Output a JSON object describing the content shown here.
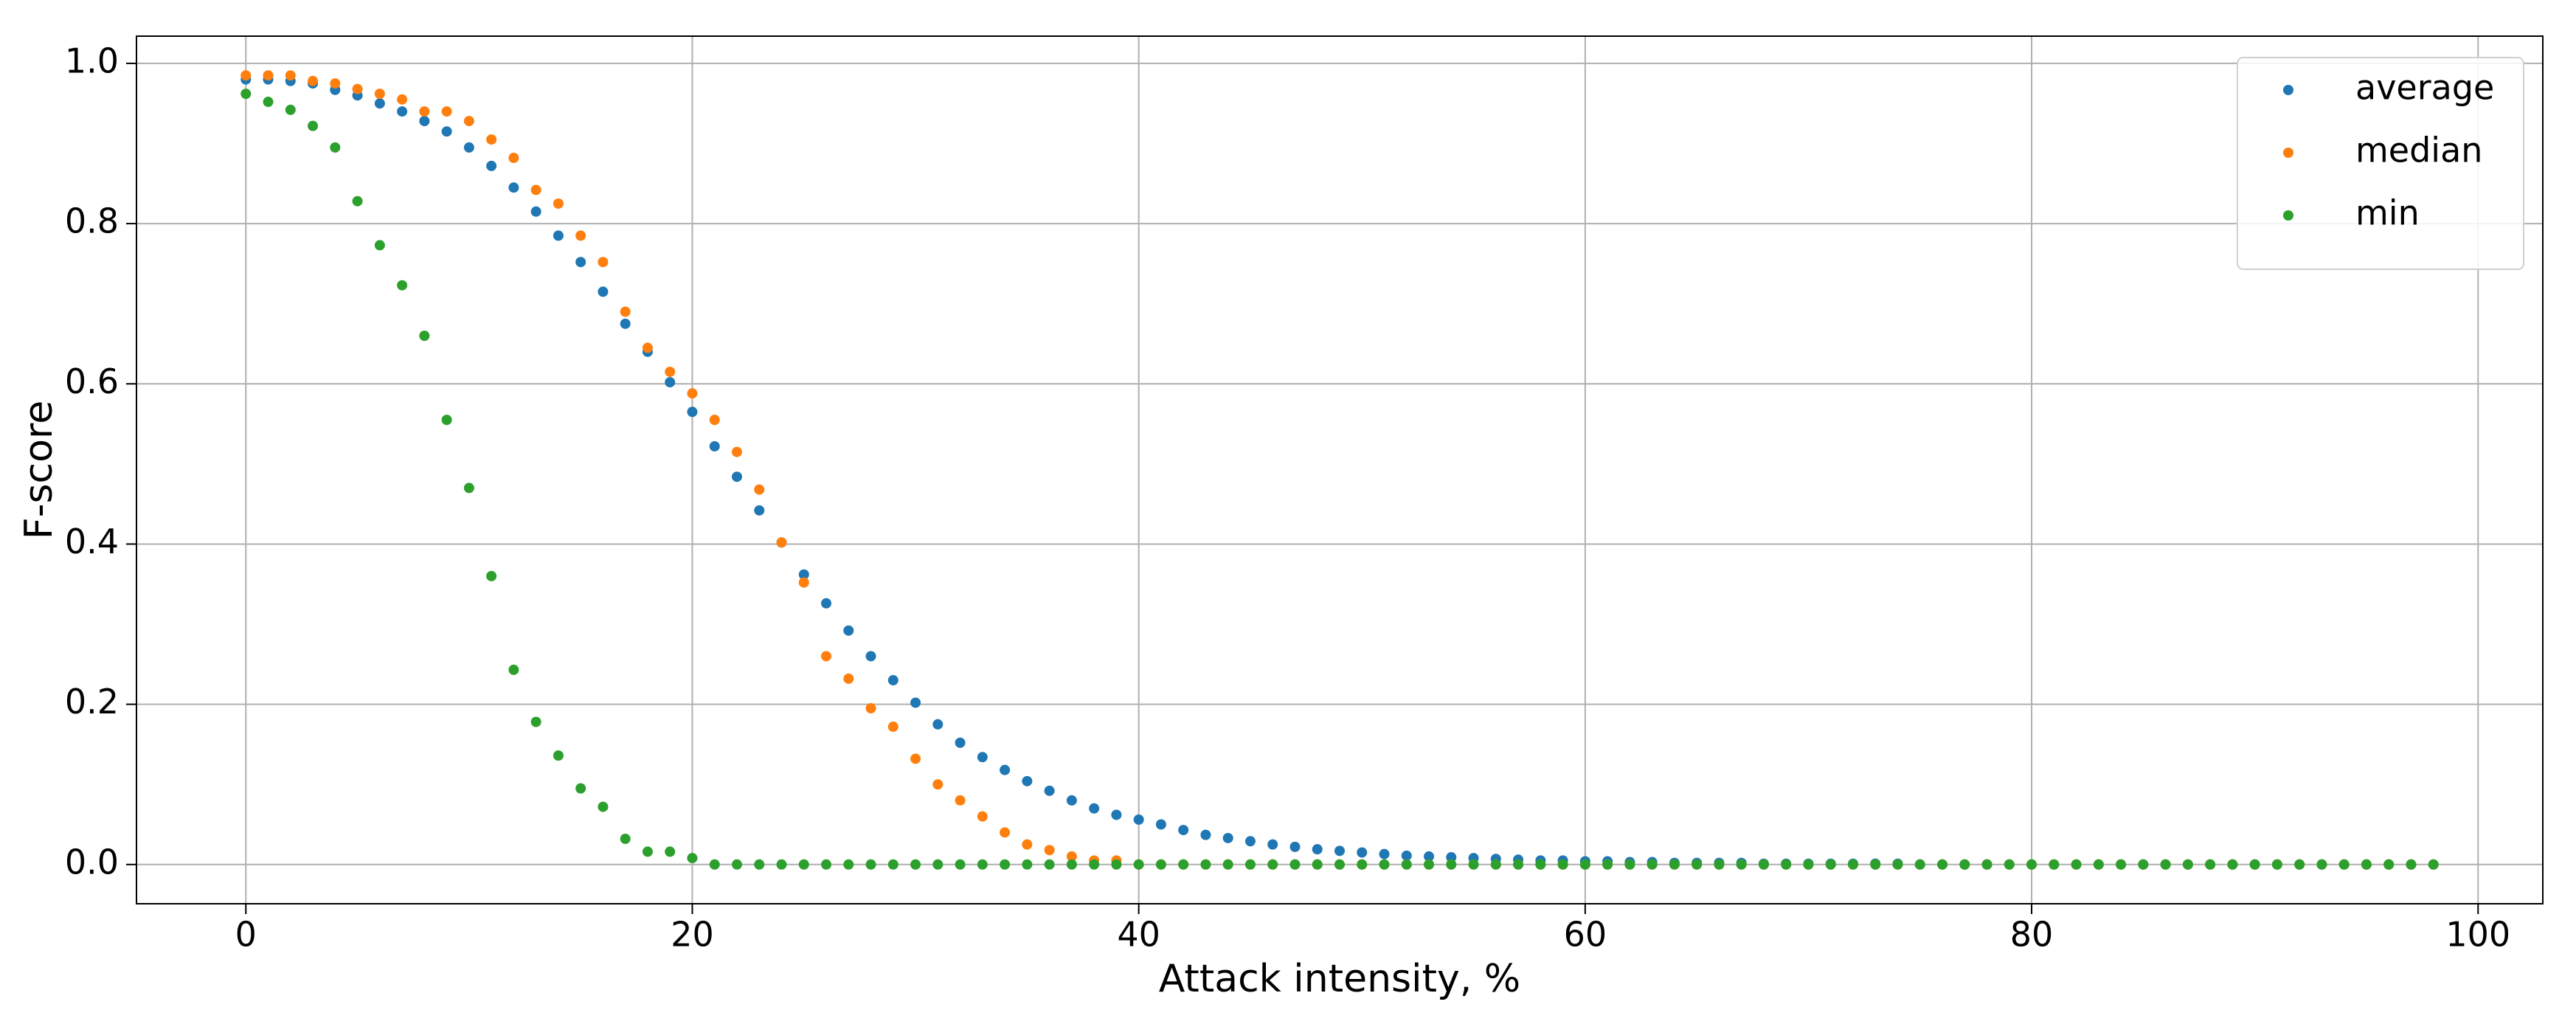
{
  "chart_data": {
    "type": "scatter",
    "xlabel": "Attack intensity, %",
    "ylabel": "F-score",
    "x": [
      0,
      1,
      2,
      3,
      4,
      5,
      6,
      7,
      8,
      9,
      10,
      11,
      12,
      13,
      14,
      15,
      16,
      17,
      18,
      19,
      20,
      21,
      22,
      23,
      24,
      25,
      26,
      27,
      28,
      29,
      30,
      31,
      32,
      33,
      34,
      35,
      36,
      37,
      38,
      39,
      40,
      41,
      42,
      43,
      44,
      45,
      46,
      47,
      48,
      49,
      50,
      51,
      52,
      53,
      54,
      55,
      56,
      57,
      58,
      59,
      60,
      61,
      62,
      63,
      64,
      65,
      66,
      67,
      68,
      69,
      70,
      71,
      72,
      73,
      74,
      75,
      76,
      77,
      78,
      79,
      80,
      81,
      82,
      83,
      84,
      85,
      86,
      87,
      88,
      89,
      90,
      91,
      92,
      93,
      94,
      95,
      96,
      97,
      98
    ],
    "series": [
      {
        "name": "average",
        "color": "#1f77b4",
        "values": [
          0.98,
          0.98,
          0.978,
          0.975,
          0.967,
          0.96,
          0.95,
          0.94,
          0.928,
          0.915,
          0.895,
          0.872,
          0.845,
          0.815,
          0.785,
          0.752,
          0.715,
          0.675,
          0.64,
          0.602,
          0.565,
          0.522,
          0.484,
          0.442,
          0.402,
          0.362,
          0.326,
          0.292,
          0.26,
          0.23,
          0.202,
          0.175,
          0.152,
          0.134,
          0.118,
          0.104,
          0.092,
          0.08,
          0.07,
          0.062,
          0.056,
          0.05,
          0.043,
          0.037,
          0.033,
          0.029,
          0.025,
          0.022,
          0.019,
          0.017,
          0.015,
          0.013,
          0.011,
          0.01,
          0.009,
          0.008,
          0.007,
          0.006,
          0.005,
          0.005,
          0.004,
          0.004,
          0.003,
          0.003,
          0.002,
          0.002,
          0.002,
          0.002,
          0.001,
          0.001,
          0.001,
          0.001,
          0.001,
          0.001,
          0.001,
          0,
          0,
          0,
          0,
          0,
          0,
          0,
          0,
          0,
          0,
          0,
          0,
          0,
          0,
          0,
          0,
          0,
          0,
          0,
          0,
          0,
          0,
          0,
          0
        ]
      },
      {
        "name": "median",
        "color": "#ff7f0e",
        "values": [
          0.985,
          0.985,
          0.985,
          0.978,
          0.975,
          0.968,
          0.962,
          0.955,
          0.94,
          0.94,
          0.928,
          0.905,
          0.882,
          0.842,
          0.825,
          0.785,
          0.752,
          0.69,
          0.645,
          0.615,
          0.588,
          0.555,
          0.515,
          0.468,
          0.402,
          0.352,
          0.26,
          0.232,
          0.195,
          0.172,
          0.132,
          0.1,
          0.08,
          0.06,
          0.04,
          0.025,
          0.018,
          0.01,
          0.005,
          0.005,
          0,
          0,
          0,
          0,
          0,
          0,
          0,
          0,
          0,
          0,
          0,
          0,
          0,
          0,
          0,
          0,
          0,
          0,
          0,
          0,
          0,
          0,
          0,
          0,
          0,
          0,
          0,
          0,
          0,
          0,
          0,
          0,
          0,
          0,
          0,
          0,
          0,
          0,
          0,
          0,
          0,
          0,
          0,
          0,
          0,
          0,
          0,
          0,
          0,
          0,
          0,
          0,
          0,
          0,
          0,
          0,
          0,
          0,
          0
        ]
      },
      {
        "name": "min",
        "color": "#2ca02c",
        "values": [
          0.962,
          0.952,
          0.942,
          0.922,
          0.895,
          0.828,
          0.773,
          0.723,
          0.66,
          0.555,
          0.47,
          0.36,
          0.243,
          0.178,
          0.136,
          0.095,
          0.072,
          0.032,
          0.016,
          0.016,
          0.008,
          0,
          0,
          0,
          0,
          0,
          0,
          0,
          0,
          0,
          0,
          0,
          0,
          0,
          0,
          0,
          0,
          0,
          0,
          0,
          0,
          0,
          0,
          0,
          0,
          0,
          0,
          0,
          0,
          0,
          0,
          0,
          0,
          0,
          0,
          0,
          0,
          0,
          0,
          0,
          0,
          0,
          0,
          0,
          0,
          0,
          0,
          0,
          0,
          0,
          0,
          0,
          0,
          0,
          0,
          0,
          0,
          0,
          0,
          0,
          0,
          0,
          0,
          0,
          0,
          0,
          0,
          0,
          0,
          0,
          0,
          0,
          0,
          0,
          0,
          0,
          0,
          0,
          0
        ]
      }
    ],
    "xlim": [
      -4.9,
      102.9
    ],
    "xticks": [
      0,
      20,
      40,
      60,
      80,
      100
    ],
    "ylim": [
      -0.049,
      1.034
    ],
    "yticks": [
      {
        "value": 0,
        "label": "0.0"
      },
      0.2,
      0.4,
      0.6,
      0.8,
      {
        "value": 1,
        "label": "1.0"
      }
    ],
    "grid": true,
    "legend": "upper right"
  }
}
